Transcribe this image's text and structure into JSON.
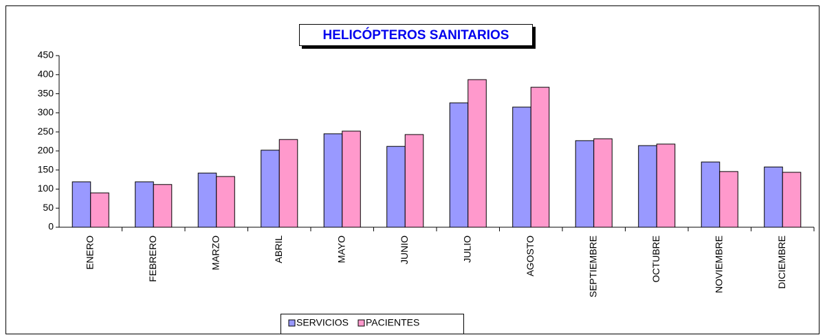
{
  "chart_data": {
    "type": "bar",
    "title": "HELICÓPTEROS SANITARIOS",
    "categories": [
      "ENERO",
      "FEBRERO",
      "MARZO",
      "ABRIL",
      "MAYO",
      "JUNIO",
      "JULIO",
      "AGOSTO",
      "SEPTIEMBRE",
      "OCTUBRE",
      "NOVIEMBRE",
      "DICIEMBRE"
    ],
    "series": [
      {
        "name": "SERVICIOS",
        "color": "#9999ff",
        "values": [
          119,
          119,
          142,
          202,
          245,
          212,
          326,
          315,
          227,
          214,
          171,
          158
        ]
      },
      {
        "name": "PACIENTES",
        "color": "#ff99cc",
        "values": [
          90,
          112,
          133,
          230,
          252,
          243,
          387,
          367,
          232,
          218,
          146,
          144
        ]
      }
    ],
    "ylim": [
      0,
      450
    ],
    "yticks": [
      0,
      50,
      100,
      150,
      200,
      250,
      300,
      350,
      400,
      450
    ],
    "grid": false,
    "legend": "bottom"
  }
}
